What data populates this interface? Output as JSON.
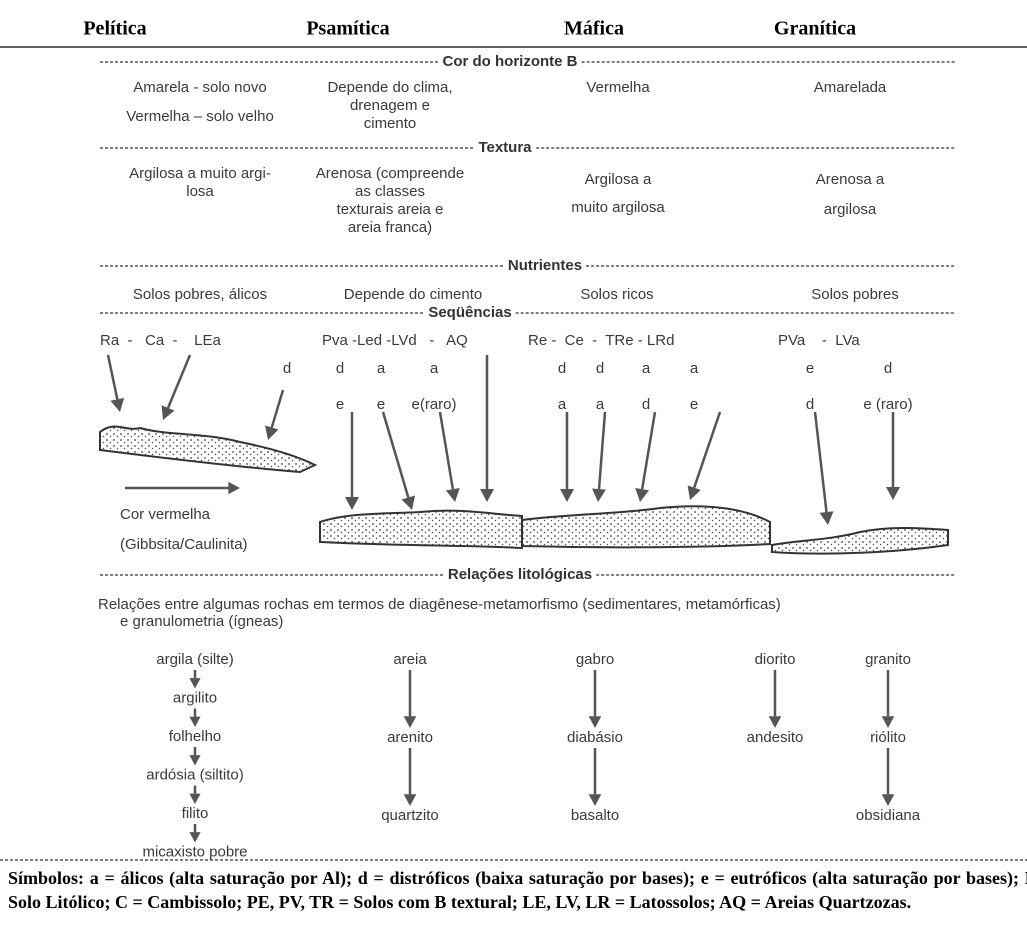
{
  "header": [
    "Pelítica",
    "Psamítica",
    "Máfica",
    "Granítica"
  ],
  "cor": {
    "title": "Cor do horizonte B",
    "cells": [
      [
        "Amarela - solo novo",
        "Vermelha – solo velho"
      ],
      [
        "Depende do clima,",
        "drenagem e",
        "cimento"
      ],
      [
        "Vermelha"
      ],
      [
        "Amarelada"
      ]
    ]
  },
  "textura": {
    "title": "Textura",
    "cells": [
      [
        "Argilosa a muito argi-",
        "losa"
      ],
      [
        "Arenosa (compreende",
        "as classes",
        "texturais areia e",
        "areia franca)"
      ],
      [
        "Argilosa a",
        "muito argilosa"
      ],
      [
        "Arenosa a",
        "argilosa"
      ]
    ]
  },
  "nutrientes": {
    "title": "Nutrientes",
    "cells": [
      "Solos pobres, álicos",
      "Depende do cimento",
      "Solos ricos",
      "Solos pobres"
    ]
  },
  "sequencias": {
    "title": "Seqüências",
    "groups": [
      {
        "line": "Ra  -   Ca  -    LEa",
        "sub": [
          [
            "d"
          ]
        ]
      },
      {
        "line": "Pva -Led -LVd   -   AQ",
        "sub": [
          [
            "d",
            "a",
            "a"
          ],
          [
            "e",
            "e",
            "e(raro)"
          ]
        ]
      },
      {
        "line": "Re -  Ce  -  TRe - LRd",
        "sub": [
          [
            "d",
            "d",
            "a",
            "a"
          ],
          [
            "a",
            "a",
            "d",
            "e"
          ]
        ]
      },
      {
        "line": "PVa    -  LVa",
        "sub": [
          [
            "e",
            "d"
          ],
          [
            "d",
            "e (raro)"
          ]
        ]
      }
    ],
    "legend": [
      "Cor vermelha",
      "(Gibbsita/Caulinita)"
    ]
  },
  "relacoes": {
    "title": "Relações litológicas",
    "intro": [
      "Relações entre algumas rochas em termos de diagênese-metamorfismo (sedimentares, metamórficas)",
      "e granulometria (ígneas)"
    ],
    "chains": [
      [
        "argila (silte)",
        "argilito",
        "folhelho",
        "ardósia (siltito)",
        "filito",
        "micaxisto pobre"
      ],
      [
        "areia",
        "arenito",
        "quartzito"
      ],
      [
        "gabro",
        "diabásio",
        "basalto"
      ],
      [
        "diorito",
        "andesito"
      ],
      [
        "granito",
        "riólito",
        "obsidiana"
      ]
    ]
  },
  "footer": "Símbolos: a = álicos (alta saturação por Al); d = distróficos (baixa saturação por bases); e = eutróficos (alta saturação por bases); R= Solo Litólico; C = Cambissolo; PE, PV, TR = Solos com B textural; LE, LV, LR = Latossolos; AQ = Areias Quartzozas."
}
